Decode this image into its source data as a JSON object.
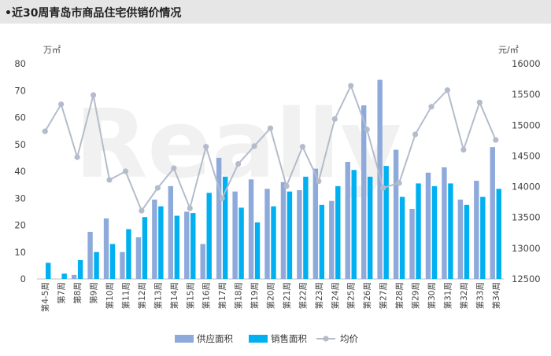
{
  "header": {
    "title": "•近30周青岛市商品住宅供销价情况"
  },
  "watermark": "Really",
  "chart_data": {
    "type": "bar",
    "categories": [
      "第4-5周",
      "第7周",
      "第8周",
      "第9周",
      "第10周",
      "第11周",
      "第12周",
      "第13周",
      "第14周",
      "第15周",
      "第16周",
      "第17周",
      "第18周",
      "第19周",
      "第20周",
      "第21周",
      "第22周",
      "第23周",
      "第24周",
      "第25周",
      "第26周",
      "第27周",
      "第28周",
      "第29周",
      "第30周",
      "第31周",
      "第32周",
      "第33周",
      "第34周"
    ],
    "left_axis": {
      "unit": "万㎡",
      "ylim": [
        0,
        80
      ],
      "ticks": [
        0,
        10,
        20,
        30,
        40,
        50,
        60,
        70,
        80
      ]
    },
    "right_axis": {
      "unit": "元/㎡",
      "ylim": [
        12500,
        16000
      ],
      "ticks": [
        12500,
        13000,
        13500,
        14000,
        14500,
        15000,
        15500,
        16000
      ]
    },
    "series": [
      {
        "name": "供应面积",
        "type": "bar",
        "axis": "left",
        "color": "#8eaadb",
        "values": [
          0,
          0,
          1.5,
          17.5,
          22.5,
          10,
          15.5,
          29.5,
          34.5,
          25,
          13,
          45,
          32.5,
          37,
          33.5,
          36,
          33,
          41,
          29,
          43.5,
          64.5,
          74,
          48,
          26,
          39.5,
          41.5,
          29.5,
          36.5,
          49
        ]
      },
      {
        "name": "销售面积",
        "type": "bar",
        "axis": "left",
        "color": "#00b0f0",
        "values": [
          6,
          2,
          7,
          10,
          13,
          18.5,
          23,
          27,
          23.5,
          24.5,
          32,
          38,
          26.5,
          21,
          27,
          32.5,
          38,
          27.5,
          34.5,
          40.5,
          38,
          42,
          30.5,
          35.5,
          34.5,
          35.5,
          27.5,
          30.5,
          33.5
        ]
      },
      {
        "name": "均价",
        "type": "line",
        "axis": "right",
        "color": "#b4bccb",
        "values": [
          14900,
          15340,
          14480,
          15490,
          14110,
          14250,
          13610,
          13980,
          14300,
          13650,
          14650,
          13810,
          14370,
          14660,
          14950,
          14010,
          14650,
          14090,
          15100,
          15640,
          14930,
          13980,
          14060,
          14850,
          15300,
          15570,
          14600,
          15370,
          14760
        ]
      }
    ],
    "legend": {
      "position": "bottom",
      "entries": [
        "供应面积",
        "销售面积",
        "均价"
      ]
    }
  }
}
